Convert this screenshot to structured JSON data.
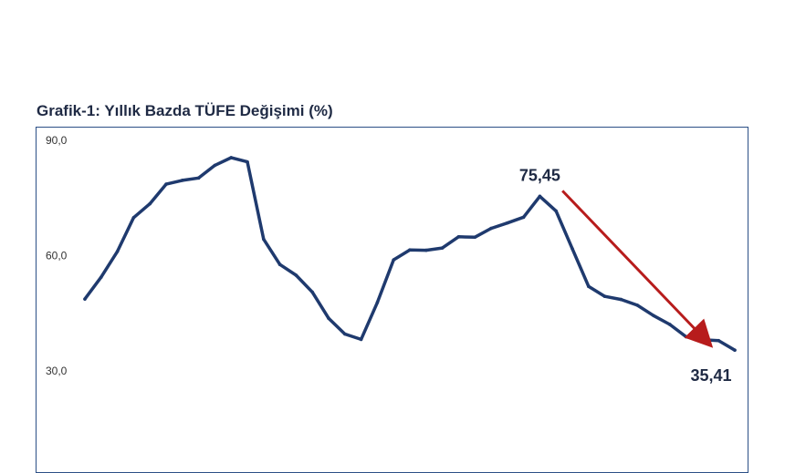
{
  "chart_data": {
    "type": "line",
    "title": "Grafik-1: Yıllık Bazda TÜFE Değişimi (%)",
    "xlabel": "",
    "ylabel": "",
    "ylim": [
      30,
      90
    ],
    "yticks": [
      {
        "value": 90,
        "label": "90,0"
      },
      {
        "value": 60,
        "label": "60,0"
      },
      {
        "value": 30,
        "label": "30,0"
      }
    ],
    "grid": false,
    "legend": "none",
    "series": [
      {
        "values": [
          48.7,
          54.4,
          61.1,
          69.9,
          73.5,
          78.6,
          79.6,
          80.2,
          83.5,
          85.5,
          84.4,
          64.3,
          57.7,
          54.9,
          50.5,
          43.7,
          39.6,
          38.2,
          47.8,
          58.9,
          61.5,
          61.4,
          62.0,
          64.9,
          64.8,
          67.1,
          68.5,
          70.0,
          75.45,
          71.6,
          61.8,
          52.0,
          49.4,
          48.6,
          47.1,
          44.4,
          42.1,
          38.9,
          38.1,
          37.9,
          35.41
        ]
      }
    ],
    "annotations": [
      {
        "text": "75,45",
        "point_index": 28
      },
      {
        "text": "35,41",
        "point_index": 40
      }
    ],
    "trend_arrow": {
      "from_value": 75.45,
      "to_value": 37.5,
      "color": "#b71c1c"
    }
  },
  "colors": {
    "line": "#1f3a6e",
    "frame": "#2b4f86",
    "arrow": "#b71c1c",
    "title": "#1f2a44"
  }
}
